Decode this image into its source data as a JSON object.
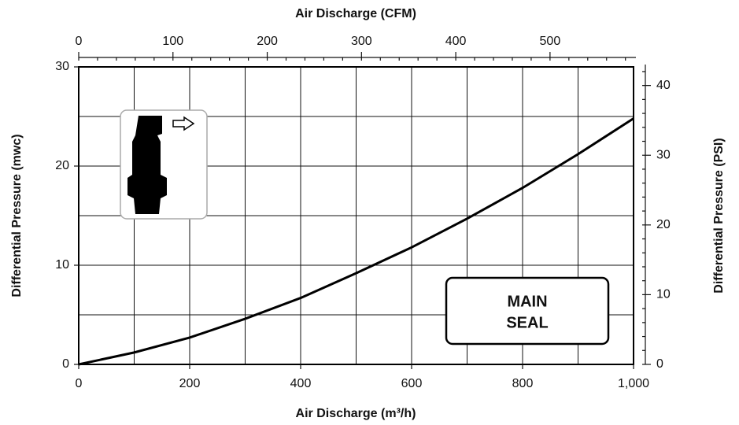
{
  "chart_data": {
    "type": "line",
    "x_label": "Air Discharge (m³/h)",
    "x2_label": "Air Discharge (CFM)",
    "y_label": "Differential Pressure (mwc)",
    "y2_label": "Differential Pressure (PSI)",
    "annotation": [
      "MAIN",
      "SEAL"
    ],
    "x": [
      0,
      100,
      200,
      300,
      400,
      500,
      600,
      700,
      800,
      900,
      1000
    ],
    "series": [
      {
        "color": "#000000",
        "values": [
          0,
          1.2,
          2.7,
          4.6,
          6.7,
          9.2,
          11.8,
          14.7,
          17.8,
          21.2,
          24.8
        ]
      }
    ],
    "xlim": [
      0,
      1000
    ],
    "xticks": [
      0,
      200,
      400,
      600,
      800,
      {
        "value": 1000,
        "label": "1,000"
      }
    ],
    "xgridlines": [
      100,
      200,
      300,
      400,
      500,
      600,
      700,
      800,
      900
    ],
    "ylim": [
      0,
      30
    ],
    "yticks": [
      0,
      10,
      20,
      30
    ],
    "ygridlines": [
      5,
      10,
      15,
      20,
      25
    ],
    "x2lim": [
      0,
      588.6
    ],
    "x2ticks": [
      0,
      100,
      200,
      300,
      400,
      500
    ],
    "x2minorticks": [
      20,
      40,
      60,
      80,
      120,
      140,
      160,
      180,
      220,
      240,
      260,
      280,
      320,
      340,
      360,
      380,
      420,
      440,
      460,
      480,
      520,
      540,
      560,
      580
    ],
    "y2lim": [
      0,
      42.67
    ],
    "y2ticks": [
      0,
      10,
      20,
      30,
      40
    ],
    "y2minorticks": [
      2,
      4,
      6,
      8,
      12,
      14,
      16,
      18,
      22,
      24,
      26,
      28,
      32,
      34,
      36,
      38,
      42
    ],
    "grid": true
  }
}
